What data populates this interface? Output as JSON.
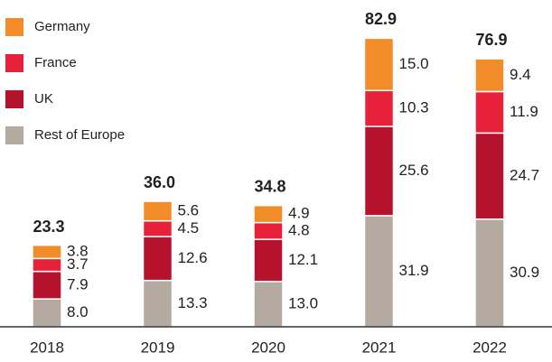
{
  "chart_data": {
    "type": "stacked_bar",
    "categories": [
      "2018",
      "2019",
      "2020",
      "2021",
      "2022"
    ],
    "series": [
      {
        "name": "Rest of Europe",
        "color": "#b5aaa0",
        "values": [
          8.0,
          13.3,
          13.0,
          31.9,
          30.9
        ],
        "value_labels": [
          "8.0",
          "13.3",
          "13.0",
          "31.9",
          "30.9"
        ]
      },
      {
        "name": "UK",
        "color": "#b5122e",
        "values": [
          7.9,
          12.6,
          12.1,
          25.6,
          24.7
        ],
        "value_labels": [
          "7.9",
          "12.6",
          "12.1",
          "25.6",
          "24.7"
        ]
      },
      {
        "name": "France",
        "color": "#e8213a",
        "values": [
          3.7,
          4.5,
          4.8,
          10.3,
          11.9
        ],
        "value_labels": [
          "3.7",
          "4.5",
          "4.8",
          "10.3",
          "11.9"
        ]
      },
      {
        "name": "Germany",
        "color": "#f28c28",
        "values": [
          3.8,
          5.6,
          4.9,
          15.0,
          9.4
        ],
        "value_labels": [
          "3.8",
          "5.6",
          "4.9",
          "15.0",
          "9.4"
        ]
      }
    ],
    "totals": [
      23.3,
      36.0,
      34.8,
      82.9,
      76.9
    ],
    "total_labels": [
      "23.3",
      "36.0",
      "34.8",
      "82.9",
      "76.9"
    ]
  }
}
